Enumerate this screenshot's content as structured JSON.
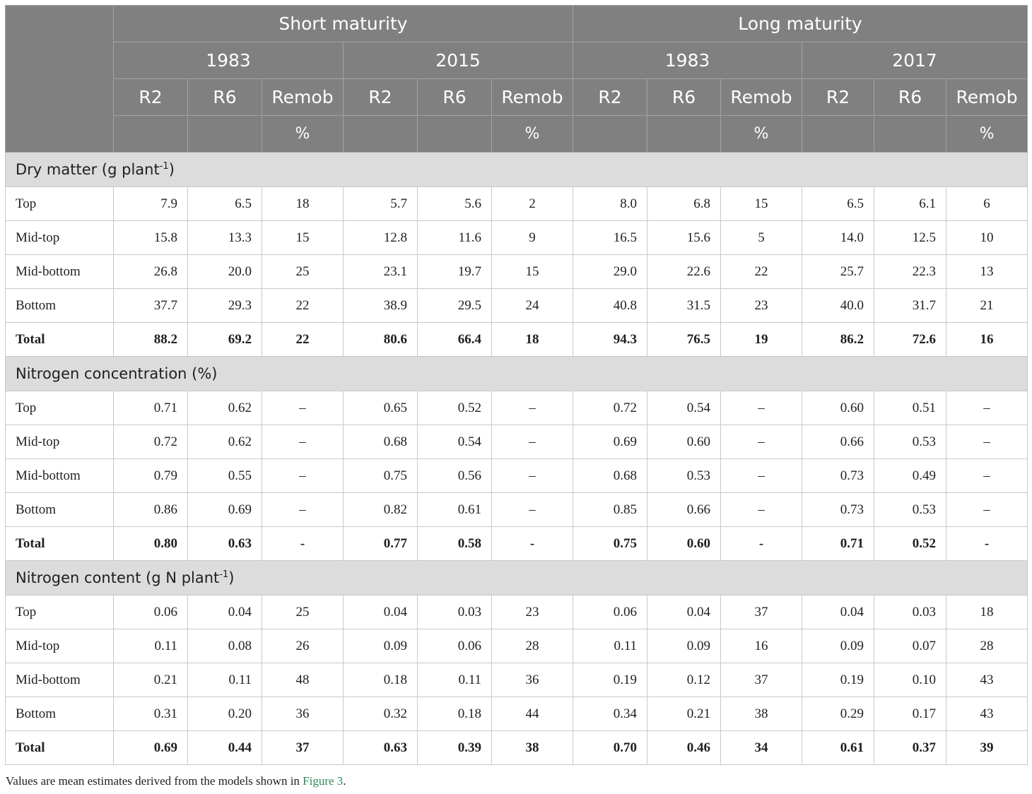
{
  "header": {
    "maturity": [
      "Short maturity",
      "Long maturity"
    ],
    "years": [
      "1983",
      "2015",
      "1983",
      "2017"
    ],
    "cols": [
      "R2",
      "R6",
      "Remob"
    ],
    "unit": "%"
  },
  "sections": [
    {
      "title": "Dry matter (g plant",
      "title_sup": "-1",
      "title_end": ")",
      "rows": [
        {
          "label": "Top",
          "values": [
            "7.9",
            "6.5",
            "18",
            "5.7",
            "5.6",
            "2",
            "8.0",
            "6.8",
            "15",
            "6.5",
            "6.1",
            "6"
          ]
        },
        {
          "label": "Mid-top",
          "values": [
            "15.8",
            "13.3",
            "15",
            "12.8",
            "11.6",
            "9",
            "16.5",
            "15.6",
            "5",
            "14.0",
            "12.5",
            "10"
          ]
        },
        {
          "label": "Mid-bottom",
          "values": [
            "26.8",
            "20.0",
            "25",
            "23.1",
            "19.7",
            "15",
            "29.0",
            "22.6",
            "22",
            "25.7",
            "22.3",
            "13"
          ]
        },
        {
          "label": "Bottom",
          "values": [
            "37.7",
            "29.3",
            "22",
            "38.9",
            "29.5",
            "24",
            "40.8",
            "31.5",
            "23",
            "40.0",
            "31.7",
            "21"
          ]
        },
        {
          "label": "Total",
          "values": [
            "88.2",
            "69.2",
            "22",
            "80.6",
            "66.4",
            "18",
            "94.3",
            "76.5",
            "19",
            "86.2",
            "72.6",
            "16"
          ]
        }
      ]
    },
    {
      "title": "Nitrogen concentration (%)",
      "title_sup": "",
      "title_end": "",
      "rows": [
        {
          "label": "Top",
          "values": [
            "0.71",
            "0.62",
            "–",
            "0.65",
            "0.52",
            "–",
            "0.72",
            "0.54",
            "–",
            "0.60",
            "0.51",
            "–"
          ]
        },
        {
          "label": "Mid-top",
          "values": [
            "0.72",
            "0.62",
            "–",
            "0.68",
            "0.54",
            "–",
            "0.69",
            "0.60",
            "–",
            "0.66",
            "0.53",
            "–"
          ]
        },
        {
          "label": "Mid-bottom",
          "values": [
            "0.79",
            "0.55",
            "–",
            "0.75",
            "0.56",
            "–",
            "0.68",
            "0.53",
            "–",
            "0.73",
            "0.49",
            "–"
          ]
        },
        {
          "label": "Bottom",
          "values": [
            "0.86",
            "0.69",
            "–",
            "0.82",
            "0.61",
            "–",
            "0.85",
            "0.66",
            "–",
            "0.73",
            "0.53",
            "–"
          ]
        },
        {
          "label": "Total",
          "values": [
            "0.80",
            "0.63",
            "-",
            "0.77",
            "0.58",
            "-",
            "0.75",
            "0.60",
            "-",
            "0.71",
            "0.52",
            "-"
          ]
        }
      ]
    },
    {
      "title": "Nitrogen content (g N plant",
      "title_sup": "-1",
      "title_end": ")",
      "rows": [
        {
          "label": "Top",
          "values": [
            "0.06",
            "0.04",
            "25",
            "0.04",
            "0.03",
            "23",
            "0.06",
            "0.04",
            "37",
            "0.04",
            "0.03",
            "18"
          ]
        },
        {
          "label": "Mid-top",
          "values": [
            "0.11",
            "0.08",
            "26",
            "0.09",
            "0.06",
            "28",
            "0.11",
            "0.09",
            "16",
            "0.09",
            "0.07",
            "28"
          ]
        },
        {
          "label": "Mid-bottom",
          "values": [
            "0.21",
            "0.11",
            "48",
            "0.18",
            "0.11",
            "36",
            "0.19",
            "0.12",
            "37",
            "0.19",
            "0.10",
            "43"
          ]
        },
        {
          "label": "Bottom",
          "values": [
            "0.31",
            "0.20",
            "36",
            "0.32",
            "0.18",
            "44",
            "0.34",
            "0.21",
            "38",
            "0.29",
            "0.17",
            "43"
          ]
        },
        {
          "label": "Total",
          "values": [
            "0.69",
            "0.44",
            "37",
            "0.63",
            "0.39",
            "38",
            "0.70",
            "0.46",
            "34",
            "0.61",
            "0.37",
            "39"
          ]
        }
      ]
    }
  ],
  "footnote": {
    "text": "Values are mean estimates derived from the models shown in ",
    "link": "Figure 3",
    "end": "."
  }
}
